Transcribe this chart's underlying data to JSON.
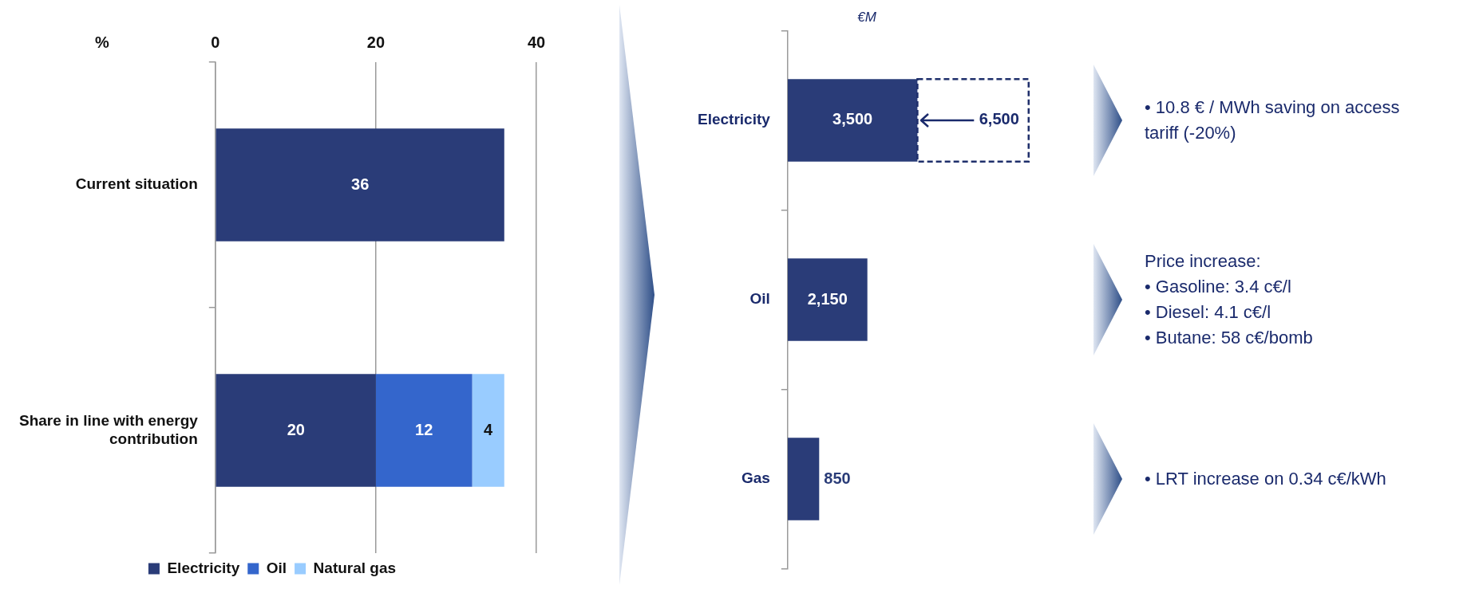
{
  "chart_data": [
    {
      "type": "bar",
      "orientation": "horizontal",
      "stacked": true,
      "xlabel": "%",
      "categories": [
        "Current situation",
        "Share in line with energy contribution"
      ],
      "series": [
        {
          "name": "Electricity",
          "color": "#2a3c78",
          "values": [
            36,
            20
          ]
        },
        {
          "name": "Oil",
          "color": "#3466cc",
          "values": [
            null,
            12
          ]
        },
        {
          "name": "Natural gas",
          "color": "#99ccff",
          "values": [
            null,
            4
          ]
        }
      ],
      "xlim": [
        0,
        40
      ],
      "xticks": [
        0,
        20,
        40
      ],
      "grid": "x",
      "legend": "bottom",
      "data_labels": true
    },
    {
      "type": "bar",
      "orientation": "horizontal",
      "stacked": true,
      "title": "€M",
      "categories": [
        "Electricity",
        "Oil",
        "Gas"
      ],
      "series": [
        {
          "color": "#2a3c78",
          "values": [
            3500,
            2150,
            850
          ],
          "value_labels": [
            "3,500",
            "2,150",
            "850"
          ]
        },
        {
          "color": "#1f2f6b",
          "line_style": "dashed",
          "values": [
            3000,
            null,
            null
          ]
        }
      ],
      "totals": [
        "6,500",
        null,
        null
      ],
      "tick_labels": "y"
    },
    {
      "type": "other",
      "annotations": [
        "• 10.8 € / MWh saving on access tariff (-20%)",
        "Price increase:\n• Gasoline: 3.4 c€/l\n• Diesel: 4.1 c€/l\n• Butane: 58 c€/bomb",
        "• LRT increase on 0.34 c€/kWh"
      ]
    }
  ]
}
